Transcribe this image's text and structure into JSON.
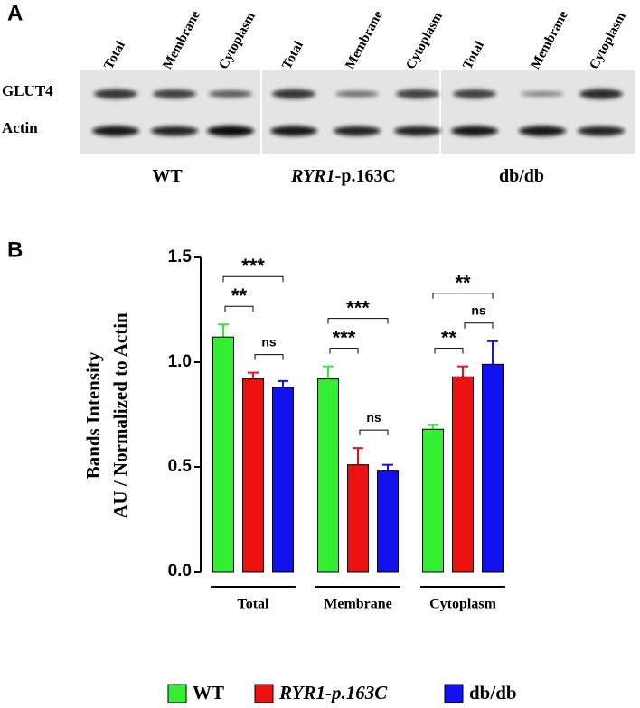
{
  "panel_a": {
    "label": "A",
    "lanes": [
      "Total",
      "Membrane",
      "Cytoplasm",
      "Total",
      "Membrane",
      "Cytoplasm",
      "Total",
      "Membrane",
      "Cytoplasm"
    ],
    "rows": [
      "GLUT4",
      "Actin"
    ],
    "groups": [
      [
        "WT"
      ],
      [
        "RYR1",
        "-p.163C"
      ],
      [
        "db/db"
      ]
    ]
  },
  "chart_data": {
    "type": "bar",
    "panel_label": "B",
    "y_label": [
      "Bands Intensity",
      "AU / Normalized to Actin"
    ],
    "categories": [
      "Total",
      "Membrane",
      "Cytoplasm"
    ],
    "series": [
      {
        "name": "WT",
        "color": "#33ee33",
        "values": [
          1.12,
          0.92,
          0.68
        ],
        "errors": [
          0.06,
          0.06,
          0.02
        ]
      },
      {
        "name": "RYR1-p.163C",
        "color": "#ee1111",
        "values": [
          0.92,
          0.51,
          0.93
        ],
        "errors": [
          0.03,
          0.08,
          0.05
        ]
      },
      {
        "name": "db/db",
        "color": "#1111ee",
        "values": [
          0.88,
          0.48,
          0.99
        ],
        "errors": [
          0.03,
          0.03,
          0.11
        ]
      }
    ],
    "significance": [
      [
        "**",
        "ns",
        "***"
      ],
      [
        "***",
        "ns",
        "***"
      ],
      [
        "**",
        "ns",
        "**"
      ]
    ],
    "ylim": [
      0,
      1.5
    ],
    "yticks": [
      {
        "value": 0,
        "label": "0.0"
      },
      {
        "value": 0.5,
        "label": "0.5"
      },
      {
        "value": 1,
        "label": "1.0"
      },
      {
        "value": 1.5,
        "label": "1.5"
      }
    ]
  }
}
